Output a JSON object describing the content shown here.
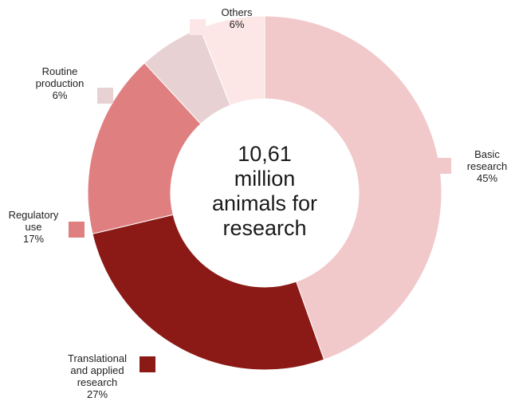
{
  "chart_data": {
    "type": "pie",
    "center_label": [
      "10,61",
      "million",
      "animals for",
      "research"
    ],
    "slices": [
      {
        "label": [
          "Basic",
          "research"
        ],
        "value": 45,
        "value_label": "45%",
        "color": "#f2c9cb"
      },
      {
        "label": [
          "Translational",
          "and applied",
          "research"
        ],
        "value": 27,
        "value_label": "27%",
        "color": "#8b1a17"
      },
      {
        "label": [
          "Regulatory",
          "use"
        ],
        "value": 17,
        "value_label": "17%",
        "color": "#e07f80"
      },
      {
        "label": [
          "Routine",
          "production"
        ],
        "value": 6,
        "value_label": "6%",
        "color": "#e8d1d2"
      },
      {
        "label": [
          "Others"
        ],
        "value": 6,
        "value_label": "6%",
        "color": "#fce6e6"
      }
    ],
    "legend": "labels-around"
  }
}
